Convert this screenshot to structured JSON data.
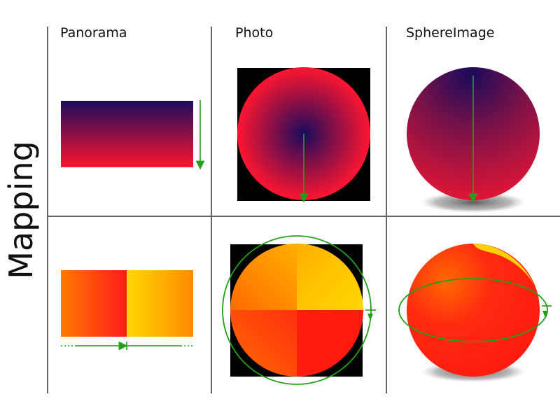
{
  "columns": [
    "Panorama",
    "Photo",
    "SphereImage"
  ],
  "side_label": "Mapping",
  "colors": {
    "grid_line": "#666666",
    "arrow": "#22a01a",
    "navy": "#1a0b5c",
    "crimson": "#ff1530",
    "red": "#ff2a10",
    "orange": "#ff8a00",
    "yellow": "#ffd000",
    "black": "#000000"
  }
}
